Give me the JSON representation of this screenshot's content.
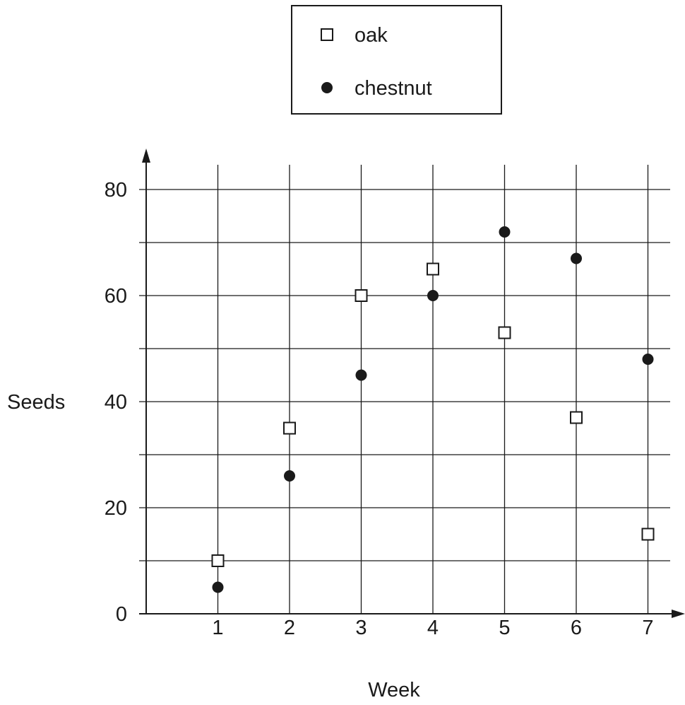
{
  "chart_data": {
    "type": "scatter",
    "xlabel": "Week",
    "ylabel": "Seeds",
    "xlim": [
      0,
      7.3
    ],
    "ylim": [
      0,
      85
    ],
    "x_ticks": [
      "1",
      "2",
      "3",
      "4",
      "5",
      "6",
      "7"
    ],
    "y_ticks": [
      "0",
      "20",
      "40",
      "60",
      "80"
    ],
    "grid": true,
    "legend_position": "top-center",
    "x": [
      1,
      2,
      3,
      4,
      5,
      6,
      7
    ],
    "series": [
      {
        "name": "oak",
        "marker": "open-square",
        "values": [
          10,
          35,
          60,
          65,
          53,
          37,
          15
        ]
      },
      {
        "name": "chestnut",
        "marker": "filled-circle",
        "values": [
          5,
          26,
          45,
          60,
          72,
          67,
          48
        ]
      }
    ]
  },
  "colors": {
    "ink": "#1a1a1a",
    "background": "#ffffff"
  }
}
